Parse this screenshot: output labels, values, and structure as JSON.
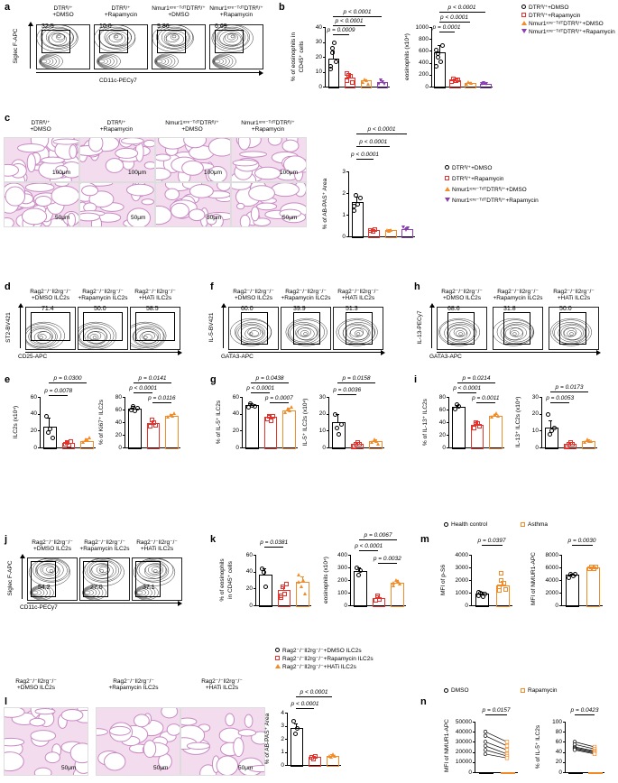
{
  "panels": {
    "a": "a",
    "b": "b",
    "c": "c",
    "d": "d",
    "e": "e",
    "f": "f",
    "g": "g",
    "h": "h",
    "i": "i",
    "j": "j",
    "k": "k",
    "l": "l",
    "m": "m",
    "n": "n"
  },
  "a": {
    "groups": [
      "DTRᶠˡ/⁺\n+DMSO",
      "DTRᶠˡ/⁺\n+Rapamycin",
      "Nmur1ᶦᶜʳᵉ⁻ᵀᵈᵀDTRᶠˡ/⁺\n+DMSO",
      "Nmur1ᶦᶜʳᵉ⁻ᵀᵈᵀDTRᶠˡ/⁺\n+Rapamycin"
    ],
    "values": [
      "32.5",
      "10.0",
      "9.86",
      "6.69"
    ],
    "ylabel": "Siglec F-APC",
    "xlabel": "CD11c-PECy7"
  },
  "b": {
    "left": {
      "ylabel1": "% of eosinophils in",
      "ylabel2": "CD45⁺ cells",
      "pvals": [
        "p < 0.0001",
        "p < 0.0001",
        "p = 0.0009"
      ],
      "ticks": [
        "0",
        "10",
        "20",
        "30",
        "40"
      ]
    },
    "right": {
      "ylabel": "eosinophils (x10⁴)",
      "pvals": [
        "p < 0.0001",
        "p < 0.0001",
        "p = 0.0001"
      ],
      "ticks": [
        "0",
        "200",
        "400",
        "600",
        "800",
        "1000"
      ]
    },
    "legend": [
      "DTRᶠˡ/⁺+DMSO",
      "DTRᶠˡ/⁺+Rapamycin",
      "Nmur1ᶦᶜʳᵉ⁻ᵀᵈᵀDTRᶠˡ/⁺+DMSO",
      "Nmur1ᶦᶜʳᵉ⁻ᵀᵈᵀDTRᶠˡ/⁺+Rapamycin"
    ]
  },
  "c": {
    "groups": [
      "DTRᶠˡ/⁺\n+DMSO",
      "DTRᶠˡ/⁺\n+Rapamycin",
      "Nmur1ᶦᶜʳᵉ⁻ᵀᵈᵀDTRᶠˡ/⁺\n+DMSO",
      "Nmur1ᶦᶜʳᵉ⁻ᵀᵈᵀDTRᶠˡ/⁺\n+Rapamycin"
    ],
    "scale_top": "100μm",
    "scale_bottom": "50μm",
    "ylabel": "% of AB-PAS⁺ Area",
    "pvals": [
      "p < 0.0001",
      "p < 0.0001",
      "p < 0.0001"
    ],
    "ticks": [
      "0",
      "1",
      "2",
      "3"
    ],
    "legend": [
      "DTRᶠˡ/⁺+DMSO",
      "DTRᶠˡ/⁺+Rapamycin",
      "Nmur1ᶦᶜʳᵉ⁻ᵀᵈᵀDTRᶠˡ/⁺+DMSO",
      "Nmur1ᶦᶜʳᵉ⁻ᵀᵈᵀDTRᶠˡ/⁺+Rapamycin"
    ]
  },
  "grp3": [
    "Rag2⁻/⁻Il2rg⁻/⁻\n+DMSO ILC2s",
    "Rag2⁻/⁻Il2rg⁻/⁻\n+Rapamycin ILC2s",
    "Rag2⁻/⁻Il2rg⁻/⁻\n+HATi ILC2s"
  ],
  "d": {
    "values": [
      "71.4",
      "50.0",
      "58.5"
    ],
    "ylabel": "ST2-BV421",
    "xlabel": "CD25-APC"
  },
  "f": {
    "values": [
      "60.0",
      "39.9",
      "51.3"
    ],
    "ylabel": "IL-5-BV421",
    "xlabel": "GATA3-APC"
  },
  "h": {
    "values": [
      "68.6",
      "31.8",
      "50.0"
    ],
    "ylabel": "IL-13-PECy7",
    "xlabel": "GATA3-APC"
  },
  "e": {
    "left": {
      "ylabel": "ILC2s (x10⁴)",
      "pvals": [
        "p = 0.0300",
        "p = 0.0078"
      ],
      "ticks": [
        "0",
        "20",
        "40",
        "60"
      ]
    },
    "right": {
      "ylabel": "% of Ki67⁺ ILC2s",
      "pvals": [
        "p = 0.0141",
        "p < 0.0001",
        "p = 0.0116"
      ],
      "ticks": [
        "0",
        "20",
        "40",
        "60",
        "80"
      ]
    }
  },
  "g": {
    "left": {
      "ylabel": "% of IL-5⁺ ILC2s",
      "pvals": [
        "p = 0.0438",
        "p < 0.0001",
        "p = 0.0007"
      ],
      "ticks": [
        "0",
        "20",
        "40",
        "60"
      ]
    },
    "right": {
      "ylabel": "IL-5⁺ ILC2s (x10⁴)",
      "pvals": [
        "p = 0.0158",
        "p = 0.0036"
      ],
      "ticks": [
        "0",
        "10",
        "20",
        "30"
      ]
    }
  },
  "i": {
    "left": {
      "ylabel": "% of IL-13⁺ ILC2s",
      "pvals": [
        "p = 0.0214",
        "p < 0.0001",
        "p = 0.0011"
      ],
      "ticks": [
        "0",
        "20",
        "40",
        "60",
        "80"
      ]
    },
    "right": {
      "ylabel": "IL-13⁺ ILC2s (x10⁴)",
      "pvals": [
        "p = 0.0173",
        "p = 0.0053"
      ],
      "ticks": [
        "0",
        "10",
        "20",
        "30"
      ]
    }
  },
  "j": {
    "values": [
      "54.2",
      "27.0",
      "37.1"
    ],
    "ylabel": "Siglec F-APC",
    "xlabel": "CD11c-PECy7",
    "groups": [
      "Rag2⁻/⁻Il2rg⁻/⁻\n+DMSO ILC2s",
      "Rag2⁻/⁻Il2rg⁻/⁻\n+Rapamycin ILC2s",
      "Rag2⁻/⁻Il2rg⁻/⁻\n+HATi  ILC2s"
    ]
  },
  "k": {
    "left": {
      "ylabel1": "% of eosinophils",
      "ylabel2": "in CD45⁺ cells",
      "pvals": [
        "p = 0.0381"
      ],
      "ticks": [
        "0",
        "20",
        "40",
        "60"
      ]
    },
    "right": {
      "ylabel": "eosinophils (x10⁴)",
      "pvals": [
        "p = 0.0067",
        "p < 0.0001",
        "p = 0.0032"
      ],
      "ticks": [
        "0",
        "100",
        "200",
        "300",
        "400"
      ]
    }
  },
  "m": {
    "legend": [
      "Health control",
      "Asthma"
    ],
    "left": {
      "ylabel": "MFI of p-S6",
      "pvals": [
        "p = 0.0397"
      ],
      "ticks": [
        "0",
        "1000",
        "2000",
        "3000",
        "4000"
      ]
    },
    "right": {
      "ylabel": "MFI of NMUR1-APC",
      "pvals": [
        "p = 0.0030"
      ],
      "ticks": [
        "0",
        "2000",
        "4000",
        "6000",
        "8000"
      ]
    }
  },
  "l": {
    "legend": [
      "Rag2⁻/⁻Il2rg⁻/⁻+DMSO ILC2s",
      "Rag2⁻/⁻Il2rg⁻/⁻+Rapamycin ILC2s",
      "Rag2⁻/⁻Il2rg⁻/⁻+HATi  ILC2s"
    ],
    "groups": [
      "Rag2⁻/⁻Il2rg⁻/⁻\n+DMSO ILC2s",
      "Rag2⁻/⁻Il2rg⁻/⁻\n+Rapamycin ILC2s",
      "Rag2⁻/⁻Il2rg⁻/⁻\n+HATi  ILC2s"
    ],
    "scale": "50μm",
    "ylabel": "% of AB-PAS⁺ Area",
    "pvals": [
      "p < 0.0001",
      "p < 0.0001"
    ],
    "ticks": [
      "0",
      "1",
      "2",
      "3",
      "4"
    ]
  },
  "n": {
    "legend": [
      "DMSO",
      "Rapamycin"
    ],
    "left": {
      "ylabel": "MFI of NMUR1-APC",
      "pvals": [
        "p = 0.0157"
      ],
      "ticks": [
        "0",
        "10000",
        "20000",
        "30000",
        "40000",
        "50000"
      ]
    },
    "right": {
      "ylabel": "% of IL-5⁺ ILC2s",
      "pvals": [
        "p = 0.0423"
      ],
      "ticks": [
        "0",
        "20",
        "40",
        "60",
        "80",
        "100"
      ]
    }
  },
  "colors": {
    "black": "#000000",
    "red": "#e8312a",
    "orange": "#f28c28",
    "purple": "#8a3fb0",
    "pink": "#d98fd0",
    "tissue": "#e8b6e0"
  }
}
